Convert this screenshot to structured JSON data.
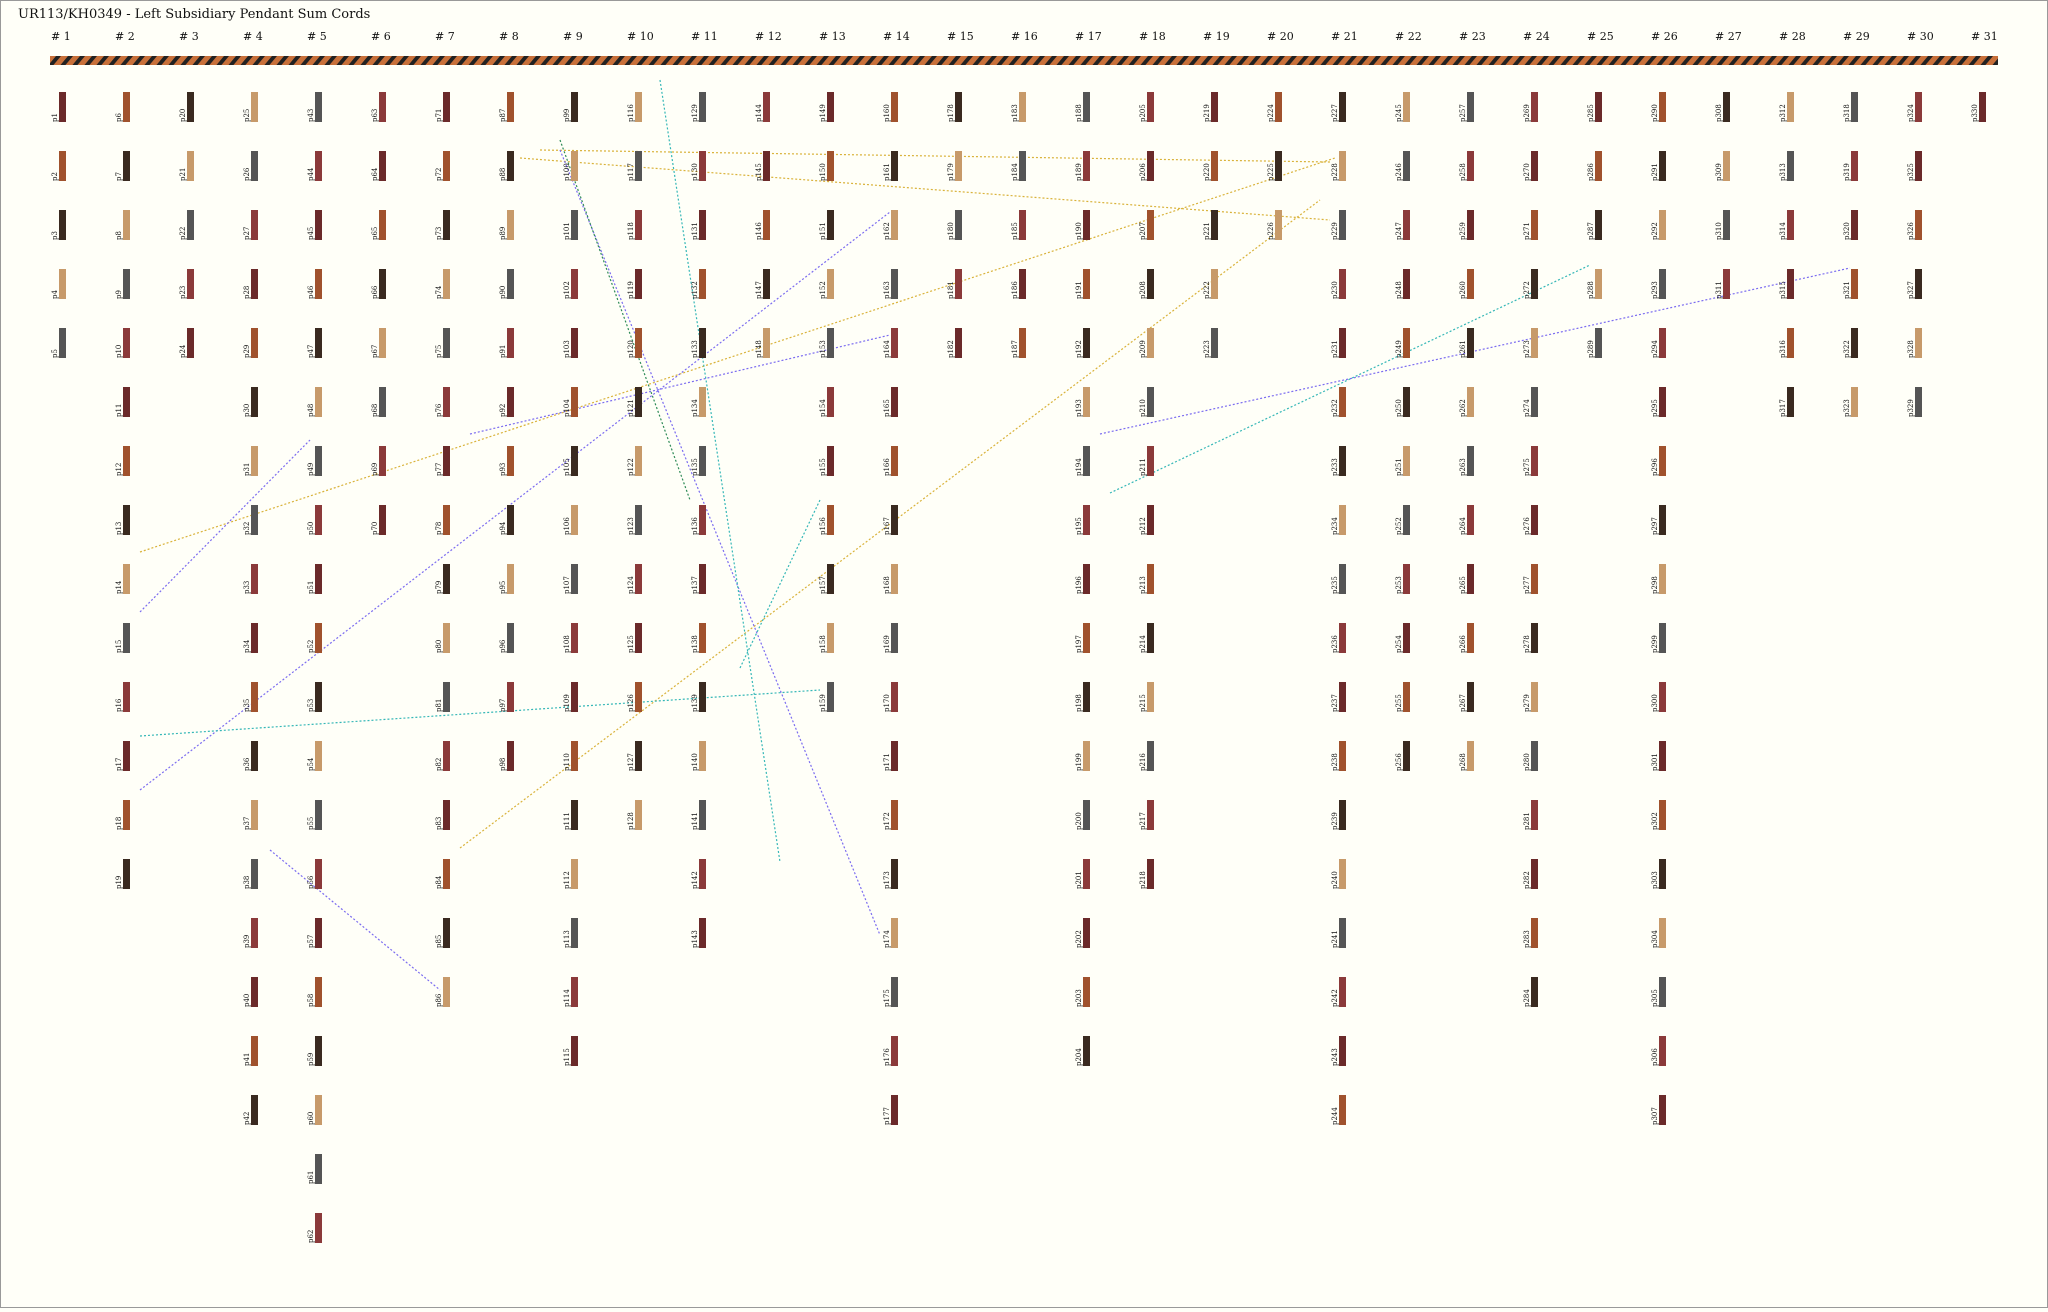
{
  "title": "UR113/KH0349 - Left Subsidiary Pendant Sum Cords",
  "groups": [
    {
      "label": "# 1",
      "cords": [
        "p1",
        "p2",
        "p3",
        "p4",
        "p5"
      ]
    },
    {
      "label": "# 2",
      "cords": [
        "p6",
        "p7",
        "p8",
        "p9",
        "p10",
        "p11",
        "p12",
        "p13",
        "p14",
        "p15",
        "p16",
        "p17",
        "p18",
        "p19"
      ]
    },
    {
      "label": "# 3",
      "cords": [
        "p20",
        "p21",
        "p22",
        "p23",
        "p24"
      ]
    },
    {
      "label": "# 4",
      "cords": [
        "p25",
        "p26",
        "p27",
        "p28",
        "p29",
        "p30",
        "p31",
        "p32",
        "p33",
        "p34",
        "p35",
        "p36",
        "p37",
        "p38",
        "p39",
        "p40",
        "p41",
        "p42"
      ]
    },
    {
      "label": "# 5",
      "cords": [
        "p43",
        "p44",
        "p45",
        "p46",
        "p47",
        "p48",
        "p49",
        "p50",
        "p51",
        "p52",
        "p53",
        "p54",
        "p55",
        "p56",
        "p57",
        "p58",
        "p59",
        "p60",
        "p61",
        "p62"
      ]
    },
    {
      "label": "# 6",
      "cords": [
        "p63",
        "p64",
        "p65",
        "p66",
        "p67",
        "p68",
        "p69",
        "p70"
      ]
    },
    {
      "label": "# 7",
      "cords": [
        "p71",
        "p72",
        "p73",
        "p74",
        "p75",
        "p76",
        "p77",
        "p78",
        "p79",
        "p80",
        "p81",
        "p82",
        "p83",
        "p84",
        "p85",
        "p86"
      ]
    },
    {
      "label": "# 8",
      "cords": [
        "p87",
        "p88",
        "p89",
        "p90",
        "p91",
        "p92",
        "p93",
        "p94",
        "p95",
        "p96",
        "p97",
        "p98"
      ]
    },
    {
      "label": "# 9",
      "cords": [
        "p99",
        "p100",
        "p101",
        "p102",
        "p103",
        "p104",
        "p105",
        "p106",
        "p107",
        "p108",
        "p109",
        "p110",
        "p111",
        "p112",
        "p113",
        "p114",
        "p115"
      ]
    },
    {
      "label": "# 10",
      "cords": [
        "p116",
        "p117",
        "p118",
        "p119",
        "p120",
        "p121",
        "p122",
        "p123",
        "p124",
        "p125",
        "p126",
        "p127",
        "p128"
      ]
    },
    {
      "label": "# 11",
      "cords": [
        "p129",
        "p130",
        "p131",
        "p132",
        "p133",
        "p134",
        "p135",
        "p136",
        "p137",
        "p138",
        "p139",
        "p140",
        "p141",
        "p142",
        "p143"
      ]
    },
    {
      "label": "# 12",
      "cords": [
        "p144",
        "p145",
        "p146",
        "p147",
        "p148"
      ]
    },
    {
      "label": "# 13",
      "cords": [
        "p149",
        "p150",
        "p151",
        "p152",
        "p153",
        "p154",
        "p155",
        "p156",
        "p157",
        "p158",
        "p159"
      ]
    },
    {
      "label": "# 14",
      "cords": [
        "p160",
        "p161",
        "p162",
        "p163",
        "p164",
        "p165",
        "p166",
        "p167",
        "p168",
        "p169",
        "p170",
        "p171",
        "p172",
        "p173",
        "p174",
        "p175",
        "p176",
        "p177"
      ]
    },
    {
      "label": "# 15",
      "cords": [
        "p178",
        "p179",
        "p180",
        "p181",
        "p182"
      ]
    },
    {
      "label": "# 16",
      "cords": [
        "p183",
        "p184",
        "p185",
        "p186",
        "p187"
      ]
    },
    {
      "label": "# 17",
      "cords": [
        "p188",
        "p189",
        "p190",
        "p191",
        "p192",
        "p193",
        "p194",
        "p195",
        "p196",
        "p197",
        "p198",
        "p199",
        "p200",
        "p201",
        "p202",
        "p203",
        "p204"
      ]
    },
    {
      "label": "# 18",
      "cords": [
        "p205",
        "p206",
        "p207",
        "p208",
        "p209",
        "p210",
        "p211",
        "p212",
        "p213",
        "p214",
        "p215",
        "p216",
        "p217",
        "p218"
      ]
    },
    {
      "label": "# 19",
      "cords": [
        "p219",
        "p220",
        "p221",
        "p222",
        "p223"
      ]
    },
    {
      "label": "# 20",
      "cords": [
        "p224",
        "p225",
        "p226"
      ]
    },
    {
      "label": "# 21",
      "cords": [
        "p227",
        "p228",
        "p229",
        "p230",
        "p231",
        "p232",
        "p233",
        "p234",
        "p235",
        "p236",
        "p237",
        "p238",
        "p239",
        "p240",
        "p241",
        "p242",
        "p243",
        "p244"
      ]
    },
    {
      "label": "# 22",
      "cords": [
        "p245",
        "p246",
        "p247",
        "p248",
        "p249",
        "p250",
        "p251",
        "p252",
        "p253",
        "p254",
        "p255",
        "p256"
      ]
    },
    {
      "label": "# 23",
      "cords": [
        "p257",
        "p258",
        "p259",
        "p260",
        "p261",
        "p262",
        "p263",
        "p264",
        "p265",
        "p266",
        "p267",
        "p268"
      ]
    },
    {
      "label": "# 24",
      "cords": [
        "p269",
        "p270",
        "p271",
        "p272",
        "p273",
        "p274",
        "p275",
        "p276",
        "p277",
        "p278",
        "p279",
        "p280",
        "p281",
        "p282",
        "p283",
        "p284"
      ]
    },
    {
      "label": "# 25",
      "cords": [
        "p285",
        "p286",
        "p287",
        "p288",
        "p289"
      ]
    },
    {
      "label": "# 26",
      "cords": [
        "p290",
        "p291",
        "p292",
        "p293",
        "p294",
        "p295",
        "p296",
        "p297",
        "p298",
        "p299",
        "p300",
        "p301",
        "p302",
        "p303",
        "p304",
        "p305",
        "p306",
        "p307"
      ]
    },
    {
      "label": "# 27",
      "cords": [
        "p308",
        "p309",
        "p310",
        "p311"
      ]
    },
    {
      "label": "# 28",
      "cords": [
        "p312",
        "p313",
        "p314",
        "p315",
        "p316",
        "p317"
      ]
    },
    {
      "label": "# 29",
      "cords": [
        "p318",
        "p319",
        "p320",
        "p321",
        "p322",
        "p323"
      ]
    },
    {
      "label": "# 30",
      "cords": [
        "p324",
        "p325",
        "p326",
        "p327",
        "p328",
        "p329"
      ]
    },
    {
      "label": "# 31",
      "cords": [
        "p330"
      ]
    }
  ]
}
